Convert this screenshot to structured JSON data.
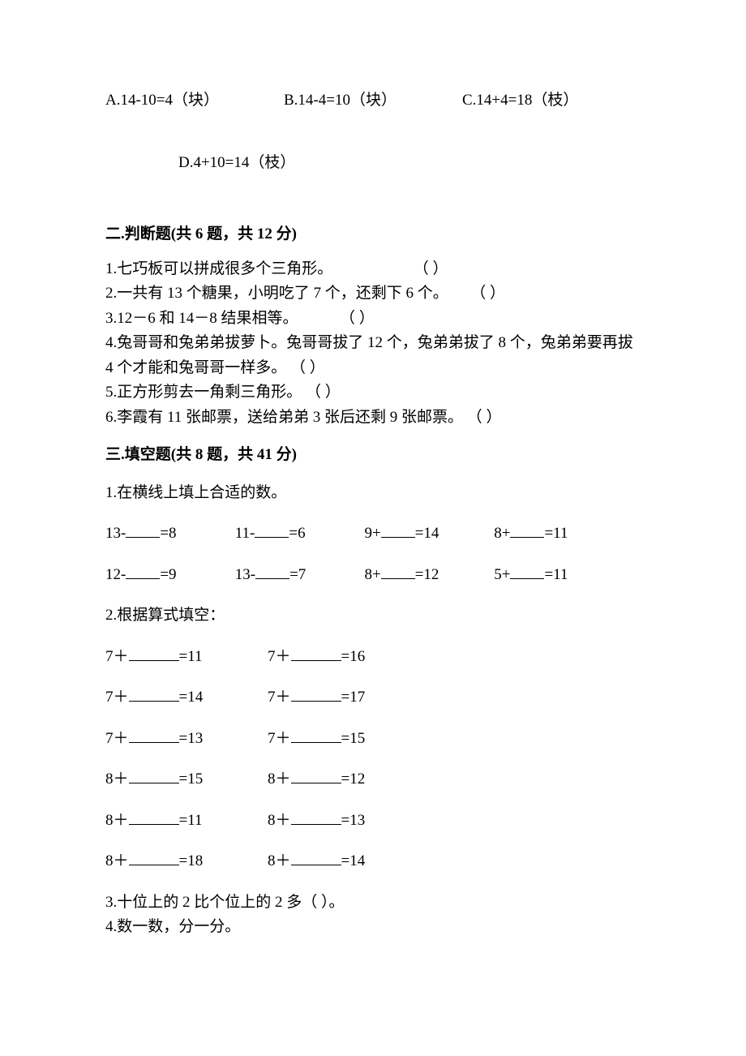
{
  "mc": {
    "optA": "A.14-10=4（块）",
    "optB": "B.14-4=10（块）",
    "optC": "C.14+4=18（枝）",
    "optD": "D.4+10=14（枝）"
  },
  "section2": {
    "title": "二.判断题(共 6 题，共 12 分)",
    "q1a": "1.七巧板可以拼成很多个三角形。",
    "q1b": "（    ）",
    "q2a": "2.一共有 13 个糖果，小明吃了 7 个，还剩下 6 个。",
    "q2b": "（    ）",
    "q3a": "3.12－6 和 14－8 结果相等。",
    "q3b": "（    ）",
    "q4_line1": "4.兔哥哥和兔弟弟拔萝卜。兔哥哥拔了 12 个，兔弟弟拔了 8 个，兔弟弟要再拔",
    "q4_line2a": "4 个才能和兔哥哥一样多。",
    "q4_line2b": "（    ）",
    "q5a": "5.正方形剪去一角剩三角形。",
    "q5b": "（    ）",
    "q6a": "6.李霞有 11 张邮票，送给弟弟 3 张后还剩 9 张邮票。",
    "q6b": "（    ）"
  },
  "section3": {
    "title": "三.填空题(共 8 题，共 41 分)",
    "q1_stem": "1.在横线上填上合适的数。",
    "q1r1": {
      "a_pre": "13-",
      "a_suf": "=8",
      "b_pre": "11-",
      "b_suf": "=6",
      "c_pre": "9+",
      "c_suf": "=14",
      "d_pre": "8+",
      "d_suf": "=11"
    },
    "q1r2": {
      "a_pre": "12-",
      "a_suf": "=9",
      "b_pre": "13-",
      "b_suf": "=7",
      "c_pre": "8+",
      "c_suf": "=12",
      "d_pre": "5+",
      "d_suf": "=11"
    },
    "q2_stem": "2.根据算式填空：",
    "q2rows": [
      {
        "a_pre": "7＋",
        "a_suf": "=11",
        "b_pre": "7＋",
        "b_suf": "=16"
      },
      {
        "a_pre": "7＋",
        "a_suf": "=14",
        "b_pre": "7＋",
        "b_suf": "=17"
      },
      {
        "a_pre": "7＋",
        "a_suf": "=13",
        "b_pre": "7＋",
        "b_suf": "=15"
      },
      {
        "a_pre": "8＋",
        "a_suf": "=15",
        "b_pre": "8＋",
        "b_suf": "=12"
      },
      {
        "a_pre": "8＋",
        "a_suf": "=11",
        "b_pre": "8＋",
        "b_suf": "=13"
      },
      {
        "a_pre": "8＋",
        "a_suf": "=18",
        "b_pre": "8＋",
        "b_suf": "=14"
      }
    ],
    "q3": "3.十位上的 2 比个位上的 2 多（    ）。",
    "q4": "4.数一数，分一分。"
  }
}
